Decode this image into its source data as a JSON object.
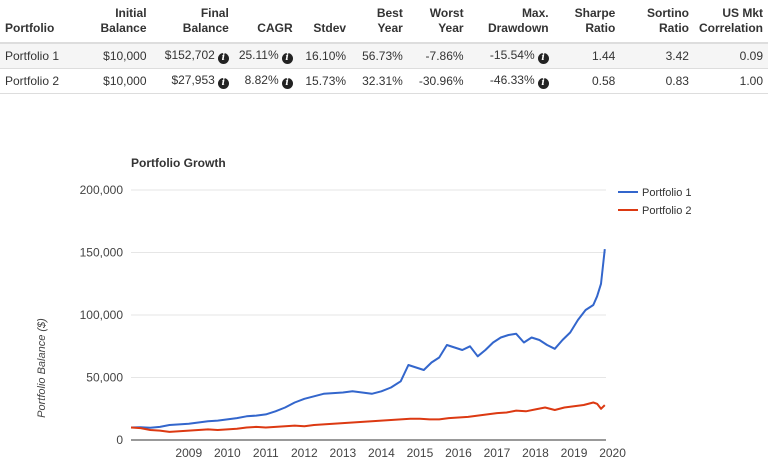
{
  "table": {
    "headers": {
      "portfolio": [
        "Portfolio"
      ],
      "initial": [
        "Initial",
        "Balance"
      ],
      "final": [
        "Final",
        "Balance"
      ],
      "cagr": [
        "CAGR"
      ],
      "stdev": [
        "Stdev"
      ],
      "best": [
        "Best",
        "Year"
      ],
      "worst": [
        "Worst",
        "Year"
      ],
      "drawdown": [
        "Max.",
        "Drawdown"
      ],
      "sharpe": [
        "Sharpe",
        "Ratio"
      ],
      "sortino": [
        "Sortino",
        "Ratio"
      ],
      "corr": [
        "US Mkt",
        "Correlation"
      ]
    },
    "rows": [
      {
        "portfolio": "Portfolio 1",
        "initial": "$10,000",
        "final": "$152,702",
        "cagr": "25.11%",
        "stdev": "16.10%",
        "best": "56.73%",
        "worst": "-7.86%",
        "drawdown": "-15.54%",
        "sharpe": "1.44",
        "sortino": "3.42",
        "corr": "0.09"
      },
      {
        "portfolio": "Portfolio 2",
        "initial": "$10,000",
        "final": "$27,953",
        "cagr": "8.82%",
        "stdev": "15.73%",
        "best": "32.31%",
        "worst": "-30.96%",
        "drawdown": "-46.33%",
        "sharpe": "0.58",
        "sortino": "0.83",
        "corr": "1.00"
      }
    ],
    "info_icon_glyph": "i",
    "info_icon_name": "info-icon"
  },
  "chart_data": {
    "type": "line",
    "title": "Portfolio Growth",
    "xlabel": "",
    "ylabel": "Portfolio Balance ($)",
    "ylim": [
      0,
      200000
    ],
    "yticks": [
      0,
      50000,
      100000,
      150000,
      200000
    ],
    "ytick_labels": [
      "0",
      "50,000",
      "100,000",
      "150,000",
      "200,000"
    ],
    "xlim": [
      2008.0,
      2020.33
    ],
    "xticks": [
      2009,
      2010,
      2011,
      2012,
      2013,
      2014,
      2015,
      2016,
      2017,
      2018,
      2019,
      2020
    ],
    "xtick_labels": [
      "2009",
      "2010",
      "2011",
      "2012",
      "2013",
      "2014",
      "2015",
      "2016",
      "2017",
      "2018",
      "2019",
      "2020"
    ],
    "grid": "horizontal",
    "legend": "right",
    "series": [
      {
        "name": "Portfolio 1",
        "color": "#3366cc",
        "x": [
          2008.0,
          2008.25,
          2008.5,
          2008.75,
          2009.0,
          2009.25,
          2009.5,
          2009.75,
          2010.0,
          2010.25,
          2010.5,
          2010.75,
          2011.0,
          2011.25,
          2011.5,
          2011.75,
          2012.0,
          2012.25,
          2012.5,
          2012.75,
          2013.0,
          2013.25,
          2013.5,
          2013.75,
          2014.0,
          2014.25,
          2014.5,
          2014.75,
          2015.0,
          2015.2,
          2015.4,
          2015.6,
          2015.8,
          2016.0,
          2016.2,
          2016.4,
          2016.6,
          2016.8,
          2017.0,
          2017.2,
          2017.4,
          2017.6,
          2017.8,
          2018.0,
          2018.2,
          2018.4,
          2018.6,
          2018.8,
          2019.0,
          2019.2,
          2019.4,
          2019.6,
          2019.8,
          2020.0,
          2020.1,
          2020.2,
          2020.3
        ],
        "values": [
          10000,
          10200,
          9800,
          10500,
          12000,
          12500,
          13000,
          14000,
          15000,
          15500,
          16500,
          17500,
          19000,
          19500,
          20500,
          23000,
          26000,
          30000,
          33000,
          35000,
          37000,
          37500,
          38000,
          39000,
          38000,
          37000,
          39000,
          42000,
          47000,
          60000,
          58000,
          56000,
          62000,
          66000,
          76000,
          74000,
          72000,
          75000,
          67000,
          72000,
          78000,
          82000,
          84000,
          85000,
          78000,
          82000,
          80000,
          76000,
          73000,
          80000,
          86000,
          96000,
          104000,
          108000,
          115000,
          125000,
          152702
        ]
      },
      {
        "name": "Portfolio 2",
        "color": "#dc3912",
        "x": [
          2008.0,
          2008.25,
          2008.5,
          2008.75,
          2009.0,
          2009.25,
          2009.5,
          2009.75,
          2010.0,
          2010.25,
          2010.5,
          2010.75,
          2011.0,
          2011.25,
          2011.5,
          2011.75,
          2012.0,
          2012.25,
          2012.5,
          2012.75,
          2013.0,
          2013.25,
          2013.5,
          2013.75,
          2014.0,
          2014.25,
          2014.5,
          2014.75,
          2015.0,
          2015.25,
          2015.5,
          2015.75,
          2016.0,
          2016.25,
          2016.5,
          2016.75,
          2017.0,
          2017.25,
          2017.5,
          2017.75,
          2018.0,
          2018.25,
          2018.5,
          2018.75,
          2019.0,
          2019.25,
          2019.5,
          2019.75,
          2020.0,
          2020.1,
          2020.2,
          2020.3
        ],
        "values": [
          10000,
          9500,
          8000,
          7500,
          6500,
          7000,
          7500,
          8000,
          8500,
          8000,
          8500,
          9000,
          10000,
          10500,
          10000,
          10500,
          11000,
          11500,
          11000,
          12000,
          12500,
          13000,
          13500,
          14000,
          14500,
          15000,
          15500,
          16000,
          16500,
          17000,
          17000,
          16500,
          16500,
          17500,
          18000,
          18500,
          19500,
          20500,
          21500,
          22000,
          23500,
          23000,
          24500,
          26000,
          24000,
          26000,
          27000,
          28000,
          30000,
          29000,
          25000,
          27953
        ]
      }
    ]
  }
}
